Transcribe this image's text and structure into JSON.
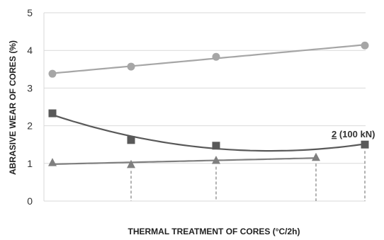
{
  "chart_data": {
    "type": "scatter",
    "title": "",
    "xlabel": "THERMAL TREATMENT OF CORES (°C/2h)",
    "ylabel": "ABRASIVE WEAR OF CORES  (%)",
    "ylim": [
      0,
      5
    ],
    "yticks": [
      "0",
      "1",
      "2",
      "3",
      "4",
      "5"
    ],
    "grid": true,
    "x": [
      1,
      2,
      3,
      4,
      5
    ],
    "series": [
      {
        "marker": "circle",
        "color": "#a6a6a6",
        "points": [
          [
            1,
            3.38
          ],
          [
            2,
            3.57
          ],
          [
            3,
            3.83
          ],
          [
            5,
            4.13
          ]
        ],
        "trendline": "linear"
      },
      {
        "marker": "square",
        "color": "#595959",
        "points": [
          [
            1,
            2.33
          ],
          [
            2,
            1.62
          ],
          [
            3,
            1.47
          ],
          [
            5,
            1.5
          ]
        ],
        "trendline": "polynomial"
      },
      {
        "marker": "triangle",
        "color": "#7f7f7f",
        "points": [
          [
            1,
            1.02
          ],
          [
            2,
            0.97
          ],
          [
            3,
            1.08
          ],
          [
            4,
            1.16
          ]
        ],
        "trendline": "linear"
      }
    ],
    "annotation": {
      "text_underlined": "2",
      "text_rest": " (100 kN)"
    }
  }
}
